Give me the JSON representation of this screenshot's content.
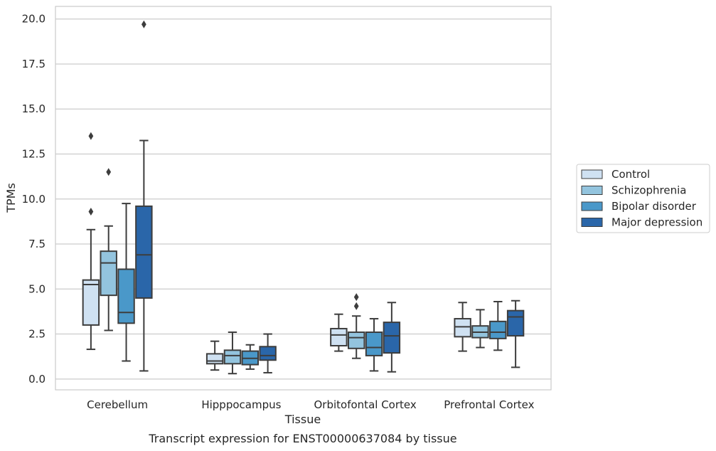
{
  "chart_data": {
    "type": "box",
    "xlabel": "Tissue",
    "ylabel": "TPMs",
    "caption": "Transcript expression for ENST00000637084 by tissue",
    "ylim": [
      -0.6,
      20.7
    ],
    "yticks": [
      0.0,
      2.5,
      5.0,
      7.5,
      10.0,
      12.5,
      15.0,
      17.5,
      20.0
    ],
    "ytick_labels": [
      "0.0",
      "2.5",
      "5.0",
      "7.5",
      "10.0",
      "12.5",
      "15.0",
      "17.5",
      "20.0"
    ],
    "grid": "horizontal",
    "legend_position": "right",
    "categories": [
      "Cerebellum",
      "Hipppocampus",
      "Orbitofontal Cortex",
      "Prefrontal Cortex"
    ],
    "series": [
      {
        "name": "Control",
        "color": "#cfe1f2",
        "boxes": [
          {
            "whislo": 1.65,
            "q1": 3.0,
            "med": 5.25,
            "q3": 5.5,
            "whishi": 8.3,
            "fliers": [
              9.3,
              13.5
            ]
          },
          {
            "whislo": 0.5,
            "q1": 0.85,
            "med": 1.0,
            "q3": 1.4,
            "whishi": 2.1,
            "fliers": []
          },
          {
            "whislo": 1.55,
            "q1": 1.85,
            "med": 2.45,
            "q3": 2.8,
            "whishi": 3.6,
            "fliers": []
          },
          {
            "whislo": 1.55,
            "q1": 2.35,
            "med": 2.9,
            "q3": 3.35,
            "whishi": 4.25,
            "fliers": []
          }
        ]
      },
      {
        "name": "Schizophrenia",
        "color": "#93c4de",
        "boxes": [
          {
            "whislo": 2.7,
            "q1": 4.65,
            "med": 6.45,
            "q3": 7.1,
            "whishi": 8.5,
            "fliers": [
              11.5
            ]
          },
          {
            "whislo": 0.3,
            "q1": 0.85,
            "med": 1.3,
            "q3": 1.6,
            "whishi": 2.6,
            "fliers": []
          },
          {
            "whislo": 1.15,
            "q1": 1.7,
            "med": 2.3,
            "q3": 2.6,
            "whishi": 3.5,
            "fliers": [
              4.05,
              4.55
            ]
          },
          {
            "whislo": 1.75,
            "q1": 2.3,
            "med": 2.6,
            "q3": 2.95,
            "whishi": 3.85,
            "fliers": []
          }
        ]
      },
      {
        "name": "Bipolar disorder",
        "color": "#4a98c9",
        "boxes": [
          {
            "whislo": 1.0,
            "q1": 3.1,
            "med": 3.7,
            "q3": 6.1,
            "whishi": 9.75,
            "fliers": []
          },
          {
            "whislo": 0.55,
            "q1": 0.8,
            "med": 1.15,
            "q3": 1.55,
            "whishi": 1.9,
            "fliers": []
          },
          {
            "whislo": 0.45,
            "q1": 1.3,
            "med": 1.75,
            "q3": 2.6,
            "whishi": 3.35,
            "fliers": []
          },
          {
            "whislo": 1.6,
            "q1": 2.25,
            "med": 2.6,
            "q3": 3.2,
            "whishi": 4.3,
            "fliers": []
          }
        ]
      },
      {
        "name": "Major depression",
        "color": "#2a66a9",
        "boxes": [
          {
            "whislo": 0.45,
            "q1": 4.5,
            "med": 6.9,
            "q3": 9.6,
            "whishi": 13.25,
            "fliers": [
              19.7
            ]
          },
          {
            "whislo": 0.35,
            "q1": 1.05,
            "med": 1.3,
            "q3": 1.8,
            "whishi": 2.5,
            "fliers": []
          },
          {
            "whislo": 0.4,
            "q1": 1.45,
            "med": 2.4,
            "q3": 3.15,
            "whishi": 4.25,
            "fliers": []
          },
          {
            "whislo": 0.65,
            "q1": 2.4,
            "med": 3.45,
            "q3": 3.8,
            "whishi": 4.35,
            "fliers": []
          }
        ]
      }
    ]
  }
}
